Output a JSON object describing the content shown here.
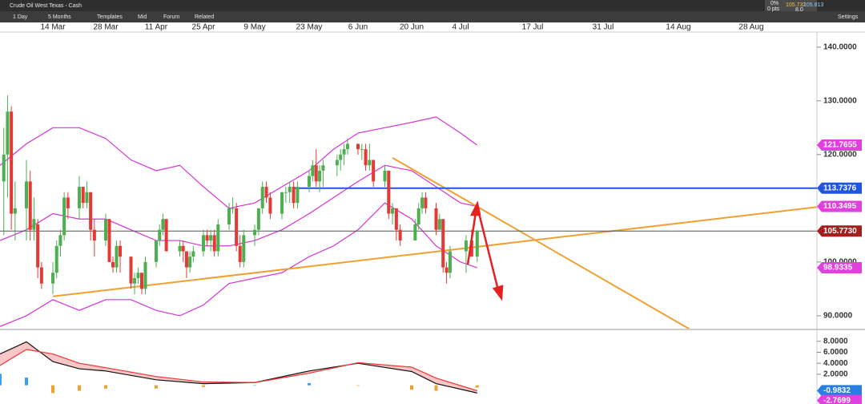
{
  "toolbar": {
    "instrument": "Crude Oil West Texas - Cash",
    "interval": "1 Day",
    "range": "5 Months",
    "templates": "Templates",
    "mid": "Mid",
    "forum": "Forum",
    "related": "Related",
    "change_pct": "0%",
    "change_pts": "0 pts",
    "sell": "105.732",
    "buy": "105.813",
    "spread": "8.0",
    "settings": "Settings"
  },
  "chart_data": [
    {
      "type": "candlestick",
      "xticks": [
        "14 Mar",
        "28 Mar",
        "11 Apr",
        "25 Apr",
        "9 May",
        "23 May",
        "6 Jun",
        "20 Jun",
        "4 Jul",
        "17 Jul",
        "31 Jul",
        "14 Aug",
        "28 Aug"
      ],
      "ylim": [
        87.6,
        142.8
      ],
      "yticks": [
        {
          "value": 90,
          "label": "90.0000"
        },
        {
          "value": 100,
          "label": "100.0000"
        },
        {
          "value": 120,
          "label": "120.0000"
        },
        {
          "value": 130,
          "label": "130.0000"
        },
        {
          "value": 140,
          "label": "140.0000"
        }
      ],
      "up_color": "#4caf50",
      "down_color": "#e53935",
      "x": [
        "1 Mar",
        "2 Mar",
        "3 Mar",
        "4 Mar",
        "7 Mar",
        "8 Mar",
        "9 Mar",
        "10 Mar",
        "11 Mar",
        "14 Mar",
        "15 Mar",
        "16 Mar",
        "17 Mar",
        "18 Mar",
        "21 Mar",
        "22 Mar",
        "23 Mar",
        "24 Mar",
        "25 Mar",
        "28 Mar",
        "29 Mar",
        "30 Mar",
        "31 Mar",
        "1 Apr",
        "4 Apr",
        "5 Apr",
        "6 Apr",
        "7 Apr",
        "8 Apr",
        "11 Apr",
        "12 Apr",
        "13 Apr",
        "14 Apr",
        "18 Apr",
        "19 Apr",
        "20 Apr",
        "21 Apr",
        "22 Apr",
        "25 Apr",
        "26 Apr",
        "27 Apr",
        "28 Apr",
        "29 Apr",
        "2 May",
        "3 May",
        "4 May",
        "5 May",
        "6 May",
        "9 May",
        "10 May",
        "11 May",
        "12 May",
        "13 May",
        "16 May",
        "17 May",
        "18 May",
        "19 May",
        "20 May",
        "23 May",
        "24 May",
        "25 May",
        "26 May",
        "27 May",
        "31 May",
        "1 Jun",
        "2 Jun",
        "3 Jun",
        "6 Jun",
        "7 Jun",
        "8 Jun",
        "9 Jun",
        "10 Jun",
        "13 Jun",
        "14 Jun",
        "15 Jun",
        "16 Jun",
        "17 Jun",
        "21 Jun",
        "22 Jun",
        "23 Jun",
        "24 Jun",
        "27 Jun",
        "28 Jun",
        "29 Jun",
        "30 Jun",
        "1 Jul",
        "5 Jul",
        "6 Jul",
        "7 Jul"
      ],
      "open": [
        115,
        120,
        128,
        109,
        110,
        115,
        106,
        107,
        99,
        96,
        98,
        103,
        105,
        112,
        110,
        114,
        111,
        113,
        106,
        104,
        108,
        100,
        99,
        103,
        101,
        96,
        97,
        98,
        95,
        100,
        104,
        106,
        108,
        102,
        103,
        102,
        99,
        101,
        102,
        105,
        104,
        105,
        102,
        107,
        110,
        110,
        103,
        100,
        105,
        106,
        110,
        114,
        112,
        109,
        113,
        113,
        114,
        111,
        114,
        116,
        118,
        115,
        117,
        118,
        119,
        120,
        121,
        122,
        121,
        121,
        118,
        119,
        115,
        117,
        109,
        110,
        106,
        104,
        107,
        110,
        112,
        110,
        106,
        108,
        99,
        98,
        102,
        104,
        101
      ],
      "high": [
        125,
        131,
        129,
        115,
        119,
        117,
        112,
        108,
        100,
        100,
        104,
        106,
        113,
        113,
        116,
        114,
        115,
        113,
        108,
        109,
        108,
        101,
        104,
        104,
        101,
        98,
        99,
        98,
        101,
        104,
        107,
        109,
        108,
        104,
        104,
        102,
        102,
        103,
        106,
        106,
        106,
        106,
        108,
        111,
        112,
        111,
        105,
        106,
        107,
        110,
        115,
        115,
        113,
        113,
        114,
        115,
        115,
        115,
        117,
        119,
        121,
        118,
        119,
        120,
        121,
        122,
        123,
        122,
        122,
        122,
        122,
        119,
        118,
        117,
        111,
        110,
        107,
        108,
        111,
        113,
        113,
        111,
        109,
        108,
        100,
        103,
        105,
        106,
        106
      ],
      "low": [
        105,
        112,
        106,
        104,
        104,
        104,
        104,
        97,
        95,
        94,
        97,
        101,
        104,
        108,
        108,
        110,
        110,
        104,
        101,
        103,
        100,
        98,
        98,
        98,
        95,
        94,
        96,
        94,
        94,
        99,
        103,
        105,
        102,
        101,
        100,
        97,
        98,
        100,
        101,
        103,
        102,
        101,
        101,
        106,
        109,
        102,
        99,
        99,
        103,
        105,
        109,
        111,
        108,
        108,
        111,
        111,
        110,
        110,
        113,
        115,
        114,
        113,
        114,
        116,
        117,
        118,
        120,
        120,
        119,
        117,
        117,
        114,
        114,
        108,
        107,
        104,
        103,
        104,
        106,
        109,
        109,
        105,
        106,
        98,
        96,
        97,
        98,
        101,
        100
      ],
      "close": [
        120,
        128,
        109,
        110,
        115,
        106,
        108,
        99,
        96,
        98,
        103,
        105,
        112,
        110,
        114,
        111,
        113,
        106,
        104,
        108,
        100,
        99,
        103,
        101,
        96,
        97,
        98,
        95,
        100,
        104,
        106,
        108,
        102,
        103,
        102,
        99,
        101,
        102,
        105,
        104,
        105,
        102,
        107,
        110,
        110,
        103,
        100,
        105,
        106,
        110,
        114,
        112,
        109,
        113,
        113,
        114,
        111,
        114,
        116,
        118,
        115,
        117,
        118,
        119,
        120,
        121,
        122,
        121,
        121,
        118,
        119,
        115,
        117,
        109,
        110,
        106,
        104,
        107,
        110,
        112,
        110,
        106,
        108,
        99,
        98,
        102,
        104,
        101,
        105.77
      ],
      "bands": {
        "color": "#d633d6",
        "x": [
          "28 Feb",
          "7 Mar",
          "14 Mar",
          "21 Mar",
          "28 Mar",
          "4 Apr",
          "11 Apr",
          "18 Apr",
          "25 Apr",
          "2 May",
          "9 May",
          "16 May",
          "23 May",
          "30 May",
          "6 Jun",
          "13 Jun",
          "20 Jun",
          "27 Jun",
          "4 Jul",
          "7 Jul"
        ],
        "series": [
          {
            "values": [
              118,
              122,
              125,
              125,
              123,
              119,
              117,
              118,
              114,
              110,
              111,
              114,
              117,
              121,
              124,
              125,
              126,
              127,
              124,
              121.7655
            ]
          },
          {
            "values": [
              104,
              106,
              109,
              108,
              108,
              106,
              104,
              104,
              103,
              103,
              104,
              106,
              109,
              112,
              115,
              118,
              117,
              114,
              111,
              110.3495
            ]
          },
          {
            "values": [
              88,
              90,
              93,
              91,
              93,
              93,
              91,
              90,
              92,
              96,
              97,
              98,
              101,
              103,
              106,
              111,
              108,
              103,
              100,
              98.9335
            ]
          }
        ]
      },
      "trendlines": [
        {
          "color": "#f0a030",
          "x": [
            "14 Mar",
            "28 Aug"
          ],
          "y": [
            93.6,
            108.8
          ]
        },
        {
          "color": "#f0a030",
          "x": [
            "15 Jun",
            "16 Aug"
          ],
          "y": [
            119.4,
            87.6
          ]
        }
      ],
      "hlines": [
        {
          "value": 113.7376,
          "color": "#2255dd",
          "from": "19 May"
        },
        {
          "value": 105.773,
          "label": "105.7730",
          "color": "#555555"
        }
      ],
      "levels": [
        {
          "value": 121.7655,
          "color": "#e040e0"
        },
        {
          "value": 113.7376,
          "color": "#2255dd"
        },
        {
          "value": 110.3495,
          "color": "#e040e0"
        },
        {
          "value": 105.773,
          "label": "105.7730",
          "color": "#a51e1e"
        },
        {
          "value": 98.9335,
          "color": "#e040e0"
        }
      ]
    },
    {
      "type": "macd",
      "ylim": [
        -3.4,
        10
      ],
      "yticks": [
        {
          "value": 2,
          "label": "2.0000"
        },
        {
          "value": 4,
          "label": "4.0000"
        },
        {
          "value": 6,
          "label": "6.0000"
        },
        {
          "value": 8,
          "label": "8.0000"
        }
      ],
      "x": [
        "28 Feb",
        "7 Mar",
        "14 Mar",
        "21 Mar",
        "28 Mar",
        "11 Apr",
        "25 Apr",
        "9 May",
        "23 May",
        "6 Jun",
        "20 Jun",
        "27 Jun",
        "7 Jul"
      ],
      "macd": {
        "color": "#111111",
        "values": [
          5.7,
          7.9,
          4.3,
          3.0,
          2.6,
          1.0,
          0.3,
          0.5,
          2.6,
          4.0,
          2.5,
          0.3,
          -1.4
        ]
      },
      "signal": {
        "color": "#e53935",
        "values": [
          3.6,
          6.5,
          5.7,
          4.0,
          3.2,
          1.6,
          0.6,
          0.5,
          2.2,
          4.1,
          3.3,
          1.3,
          -0.98
        ]
      },
      "histogram": {
        "pos_color": "#3aa0e8",
        "neg_color": "#f0a030",
        "values": [
          2.1,
          1.4,
          -1.4,
          -1.0,
          -0.6,
          -0.6,
          -0.3,
          0,
          0.4,
          -0.1,
          -0.8,
          -1.0,
          -0.42
        ]
      },
      "levels": [
        {
          "value": -0.9832,
          "color": "#2a7de1"
        },
        {
          "value": -2.7699,
          "color": "#e040e0"
        }
      ]
    }
  ]
}
